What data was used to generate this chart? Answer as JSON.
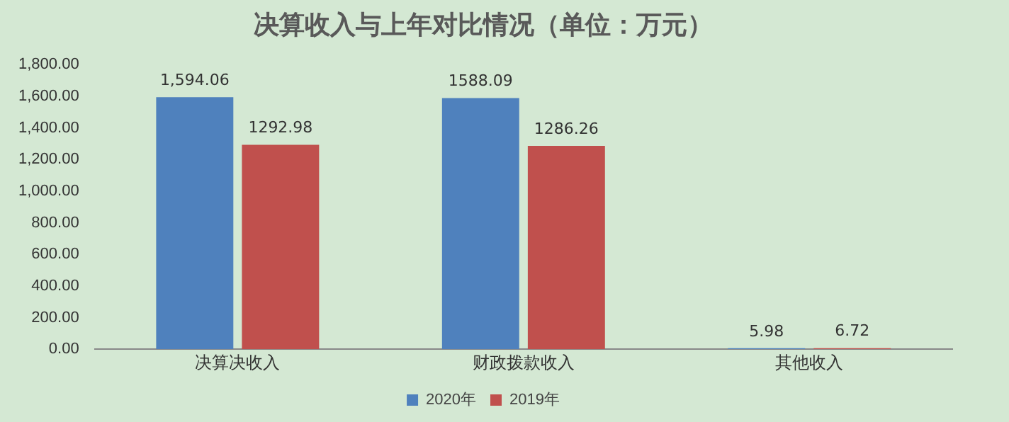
{
  "chart_data": {
    "type": "bar",
    "title": "决算收入与上年对比情况（单位：万元）",
    "categories": [
      "决算决收入",
      "财政拨款收入",
      "其他收入"
    ],
    "series": [
      {
        "name": "2020年",
        "color": "#4f81bd",
        "values": [
          1594.06,
          1588.09,
          5.98
        ],
        "value_labels": [
          "1,594.06",
          "1588.09",
          "5.98"
        ]
      },
      {
        "name": "2019年",
        "color": "#c0504d",
        "values": [
          1292.98,
          1286.26,
          6.72
        ],
        "value_labels": [
          "1292.98",
          "1286.26",
          "6.72"
        ]
      }
    ],
    "ylim": [
      0,
      1800
    ],
    "yticks": [
      {
        "value": 0,
        "label": "0.00"
      },
      {
        "value": 200,
        "label": "200.00"
      },
      {
        "value": 400,
        "label": "400.00"
      },
      {
        "value": 600,
        "label": "600.00"
      },
      {
        "value": 800,
        "label": "800.00"
      },
      {
        "value": 1000,
        "label": "1,000.00"
      },
      {
        "value": 1200,
        "label": "1,200.00"
      },
      {
        "value": 1400,
        "label": "1,400.00"
      },
      {
        "value": 1600,
        "label": "1,600.00"
      },
      {
        "value": 1800,
        "label": "1,800.00"
      }
    ],
    "grid": false,
    "legend": "bottom"
  }
}
